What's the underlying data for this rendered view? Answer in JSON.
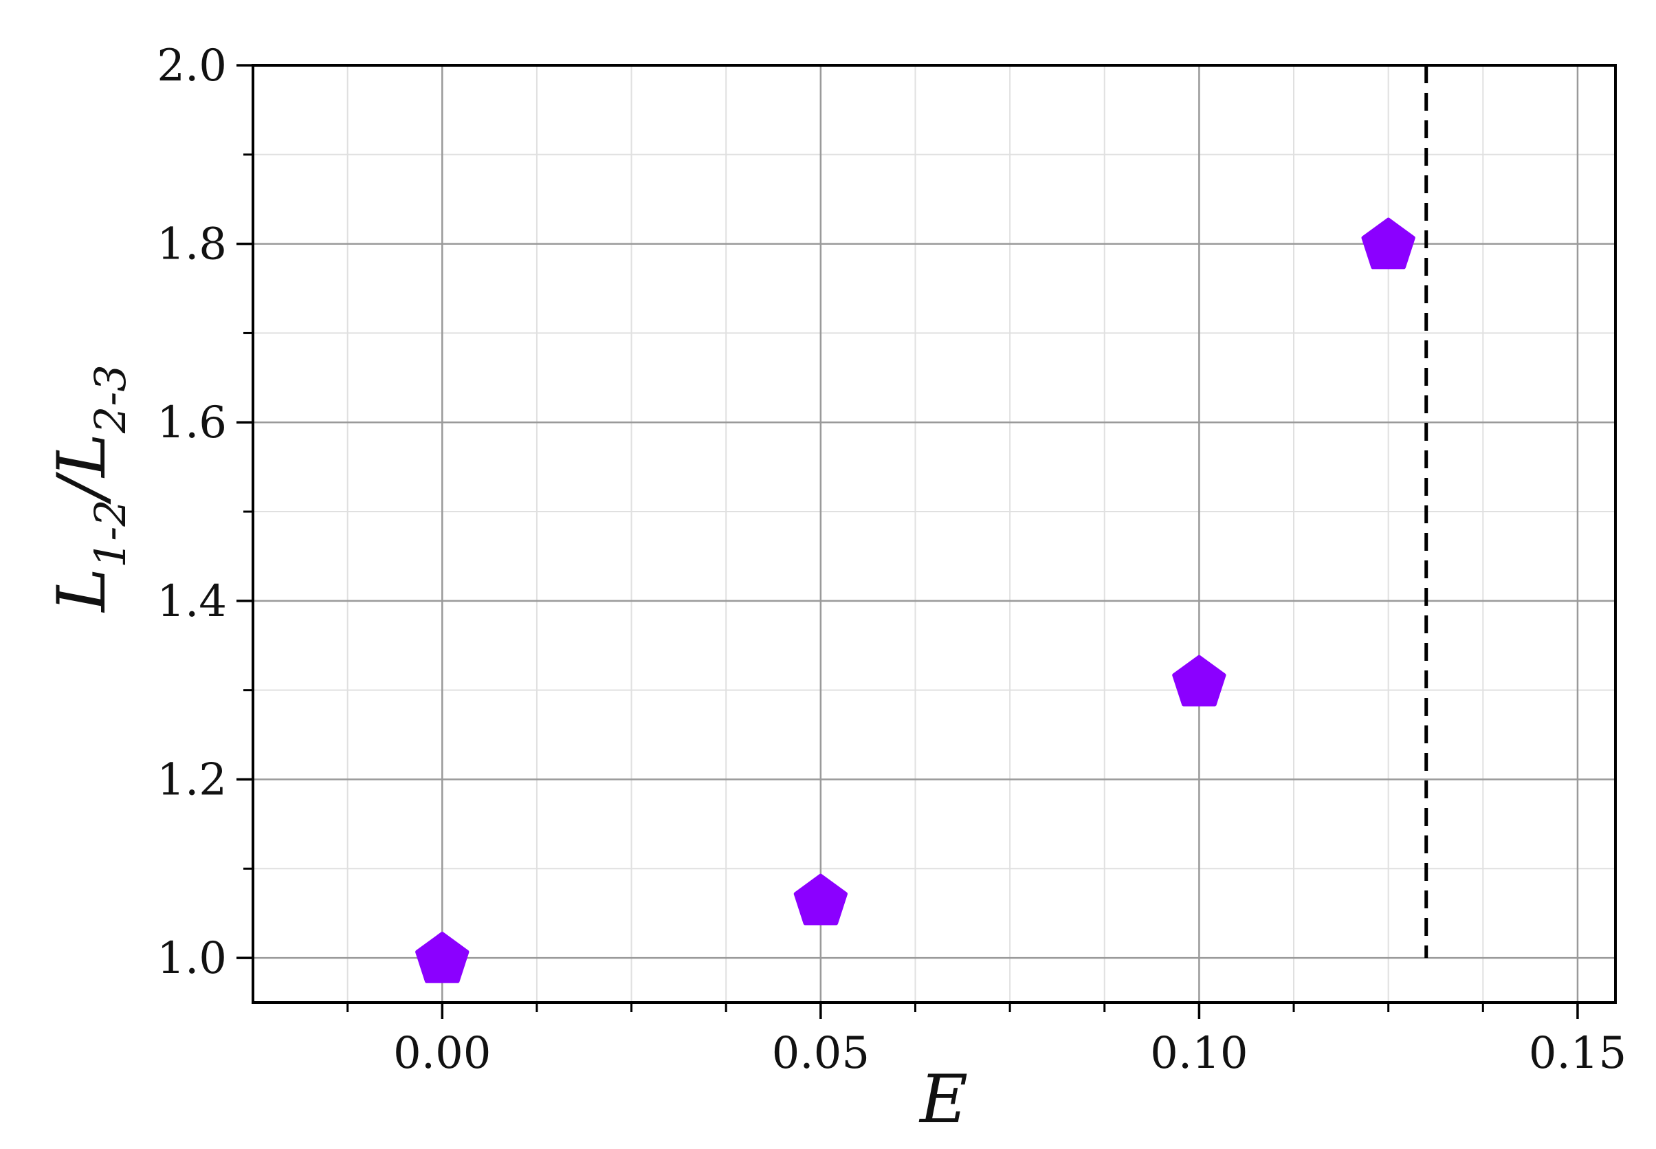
{
  "chart_data": {
    "type": "scatter",
    "xlabel": "E",
    "ylabel": {
      "main1": "L",
      "sub1": "1-2",
      "slash": "/",
      "main2": "L",
      "sub2": "2-3"
    },
    "xlim": [
      -0.025,
      0.155
    ],
    "ylim": [
      0.95,
      2.0
    ],
    "x_ticks": [
      "0.00",
      "0.05",
      "0.10",
      "0.15"
    ],
    "x_tick_values": [
      0.0,
      0.05,
      0.1,
      0.15
    ],
    "y_ticks": [
      "1.0",
      "1.2",
      "1.4",
      "1.6",
      "1.8",
      "2.0"
    ],
    "y_tick_values": [
      1.0,
      1.2,
      1.4,
      1.6,
      1.8,
      2.0
    ],
    "grid": true,
    "series": [
      {
        "marker": "pentagon",
        "color": "#8B00FF",
        "points": [
          {
            "x": 0.0,
            "y": 1.0
          },
          {
            "x": 0.05,
            "y": 1.065
          },
          {
            "x": 0.1,
            "y": 1.31
          },
          {
            "x": 0.125,
            "y": 1.8
          }
        ]
      }
    ],
    "reference_line": {
      "orientation": "vertical",
      "x": 0.13,
      "y_from": 1.0,
      "y_to": 2.0,
      "style": "dashed",
      "color": "#000000"
    }
  }
}
